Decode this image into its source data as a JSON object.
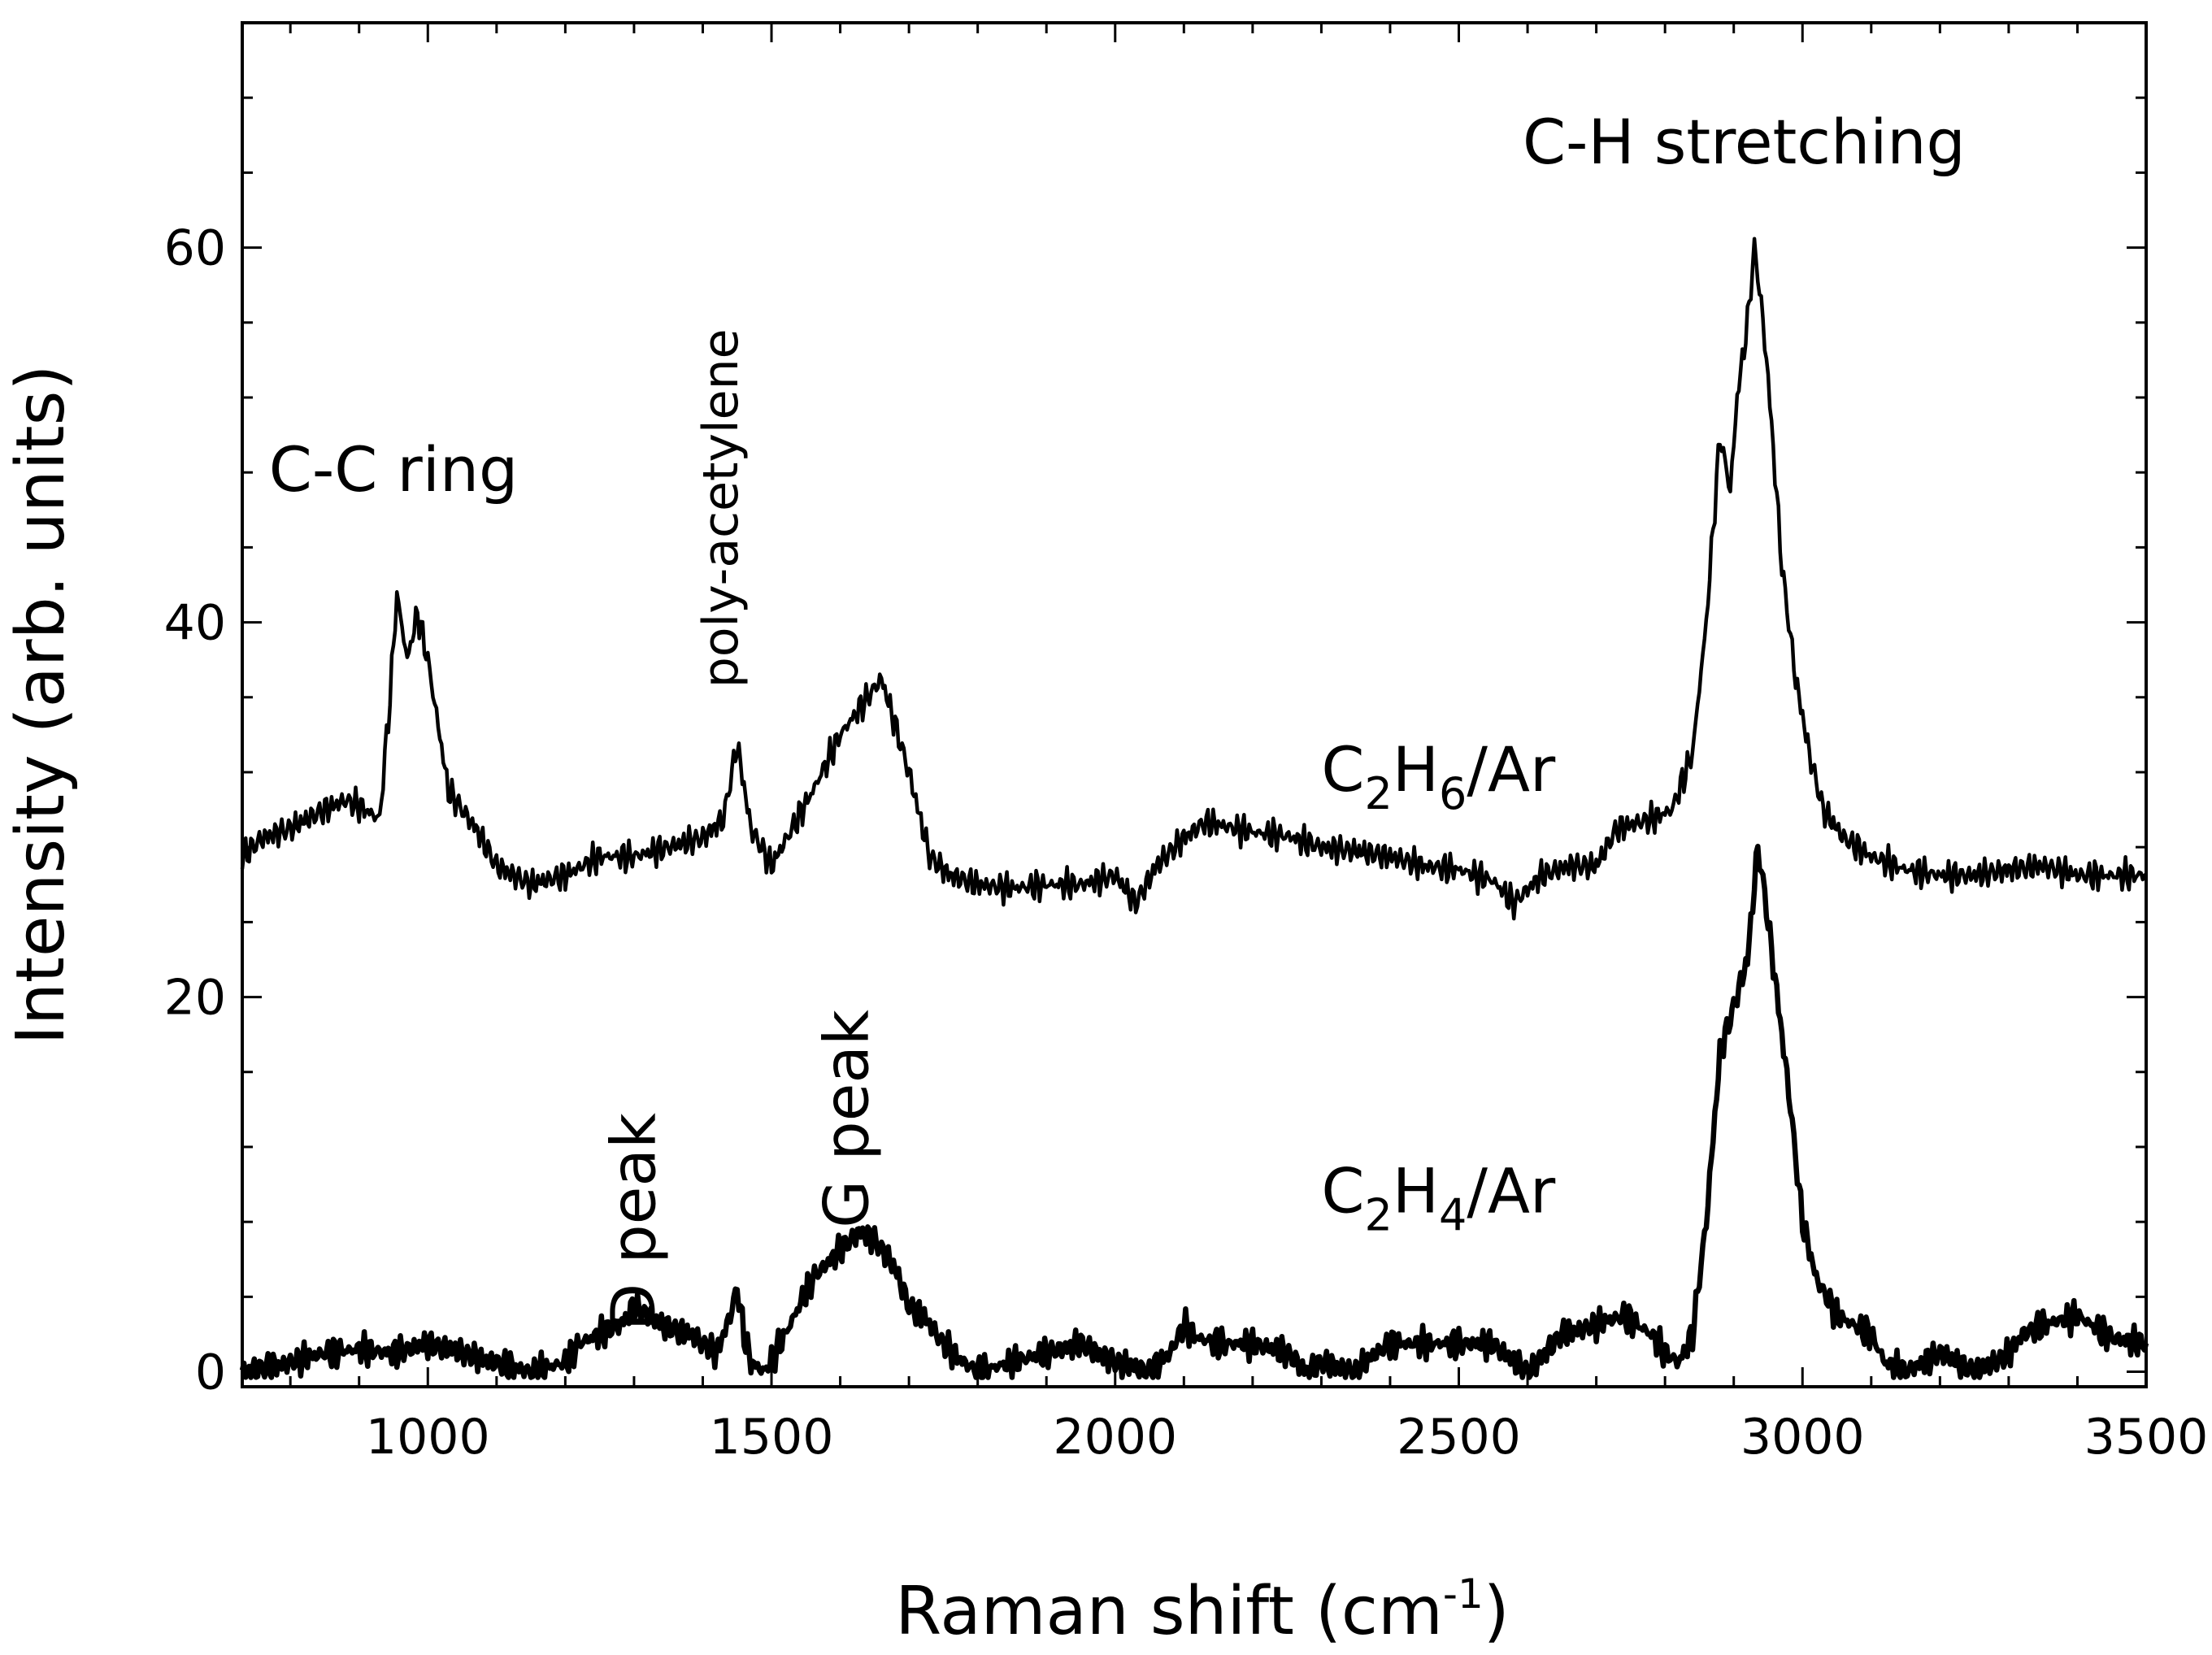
{
  "chart_data": {
    "type": "line",
    "title": "",
    "xlabel": "Raman shift (cm⁻¹)",
    "xlabel_main": "Raman shift (cm",
    "xlabel_sup": "-1",
    "xlabel_close": ")",
    "ylabel": "Intensity (arb. units)",
    "xlim": [
      730,
      3500
    ],
    "ylim": [
      -0.8,
      72
    ],
    "x_ticks": [
      1000,
      1500,
      2000,
      2500,
      3000,
      3500
    ],
    "x_tick_labels": [
      "1000",
      "1500",
      "2000",
      "2500",
      "3000",
      "3500"
    ],
    "x_minor_step": 100,
    "y_ticks": [
      0,
      20,
      40,
      60
    ],
    "y_tick_labels": [
      "0",
      "20",
      "40",
      "60"
    ],
    "y_minor_step": 4,
    "grid": false,
    "series": [
      {
        "name": "C2H6/Ar",
        "label_parts": [
          "C",
          "2",
          "H",
          "6",
          "/Ar"
        ],
        "color": "#000000",
        "x": [
          730,
          760,
          800,
          850,
          880,
          900,
          930,
          945,
          955,
          970,
          985,
          1000,
          1030,
          1070,
          1100,
          1150,
          1200,
          1250,
          1300,
          1350,
          1400,
          1430,
          1450,
          1470,
          1500,
          1530,
          1560,
          1600,
          1640,
          1660,
          1700,
          1730,
          1760,
          1800,
          1850,
          1900,
          1950,
          2000,
          2030,
          2060,
          2100,
          2130,
          2150,
          2200,
          2250,
          2300,
          2350,
          2400,
          2450,
          2500,
          2550,
          2580,
          2620,
          2660,
          2700,
          2730,
          2780,
          2810,
          2840,
          2860,
          2880,
          2895,
          2905,
          2920,
          2930,
          2940,
          2950,
          2970,
          2990,
          3010,
          3030,
          3060,
          3100,
          3150,
          3200,
          3250,
          3300,
          3350,
          3400,
          3450,
          3500
        ],
        "y": [
          27.5,
          28.5,
          29,
          30,
          30.5,
          30.2,
          29.5,
          36,
          41.5,
          38,
          40.5,
          38,
          31,
          29,
          27,
          26,
          26.5,
          27.5,
          27.5,
          28,
          28.5,
          29.5,
          33.5,
          29,
          27,
          29,
          31,
          34,
          36,
          37,
          32,
          27.5,
          26.5,
          26,
          25.8,
          26,
          26,
          26.5,
          25,
          27,
          28.5,
          29.3,
          29.2,
          28.8,
          28.6,
          28,
          27.8,
          27.5,
          27,
          26.8,
          26.2,
          25,
          26.5,
          27,
          27,
          29,
          29.5,
          30,
          33,
          40,
          50,
          47,
          52,
          56,
          60,
          57,
          53,
          43,
          37,
          33,
          30,
          28.5,
          27.5,
          26.8,
          26.5,
          26.5,
          26.8,
          27,
          26.5,
          26.5,
          26.5
        ]
      },
      {
        "name": "C2H4/Ar",
        "label_parts": [
          "C",
          "2",
          "H",
          "4",
          "/Ar"
        ],
        "color": "#000000",
        "x": [
          730,
          760,
          800,
          850,
          900,
          950,
          1000,
          1050,
          1100,
          1150,
          1200,
          1220,
          1250,
          1280,
          1300,
          1320,
          1340,
          1380,
          1420,
          1440,
          1450,
          1460,
          1470,
          1490,
          1520,
          1560,
          1600,
          1630,
          1650,
          1680,
          1700,
          1720,
          1750,
          1780,
          1800,
          1850,
          1900,
          1950,
          2000,
          2050,
          2080,
          2100,
          2120,
          2150,
          2200,
          2250,
          2280,
          2300,
          2350,
          2380,
          2400,
          2450,
          2500,
          2550,
          2580,
          2600,
          2650,
          2700,
          2740,
          2780,
          2800,
          2820,
          2840,
          2860,
          2880,
          2900,
          2920,
          2935,
          2945,
          2960,
          2980,
          3000,
          3020,
          3050,
          3100,
          3120,
          3150,
          3200,
          3250,
          3280,
          3300,
          3320,
          3350,
          3400,
          3450,
          3500
        ],
        "y": [
          0,
          0.2,
          0.5,
          1,
          1.2,
          1,
          1.5,
          1,
          0.5,
          0,
          0.5,
          1.5,
          2,
          2.5,
          3.5,
          3,
          2.5,
          2,
          1,
          3,
          4.5,
          2,
          0.5,
          0,
          2,
          5,
          6.5,
          7.5,
          7,
          5.5,
          3.5,
          3,
          1.5,
          0.5,
          0,
          0.5,
          1,
          1.5,
          0.5,
          0,
          1,
          2.5,
          1.8,
          1.5,
          1.5,
          1,
          0,
          0.5,
          0,
          1,
          1.5,
          1.5,
          1.5,
          1.5,
          0.5,
          0,
          2,
          2.5,
          3,
          2,
          1,
          0.5,
          2,
          8,
          17,
          19.5,
          22,
          28,
          25.5,
          21,
          15,
          8,
          5,
          3,
          2,
          0.5,
          0,
          1,
          0,
          0.5,
          1,
          2,
          2.5,
          3,
          1.8,
          1.5
        ]
      }
    ],
    "annotations": [
      {
        "text": "C-C ring",
        "x": 950,
        "y": 47
      },
      {
        "text": "poly-acetylene",
        "x": 1450,
        "y": 36.5,
        "rotation": -90
      },
      {
        "text": "D peak",
        "x": 1330,
        "y": 8,
        "rotation": -90
      },
      {
        "text": "G peak",
        "x": 1640,
        "y": 13.5,
        "rotation": -90
      },
      {
        "text": "C-H stretching",
        "x": 2915,
        "y": 64.5
      }
    ],
    "series_label_positions": [
      {
        "series": "C2H6/Ar",
        "x": 2300,
        "y": 31
      },
      {
        "series": "C2H4/Ar",
        "x": 2300,
        "y": 8.5
      }
    ]
  }
}
